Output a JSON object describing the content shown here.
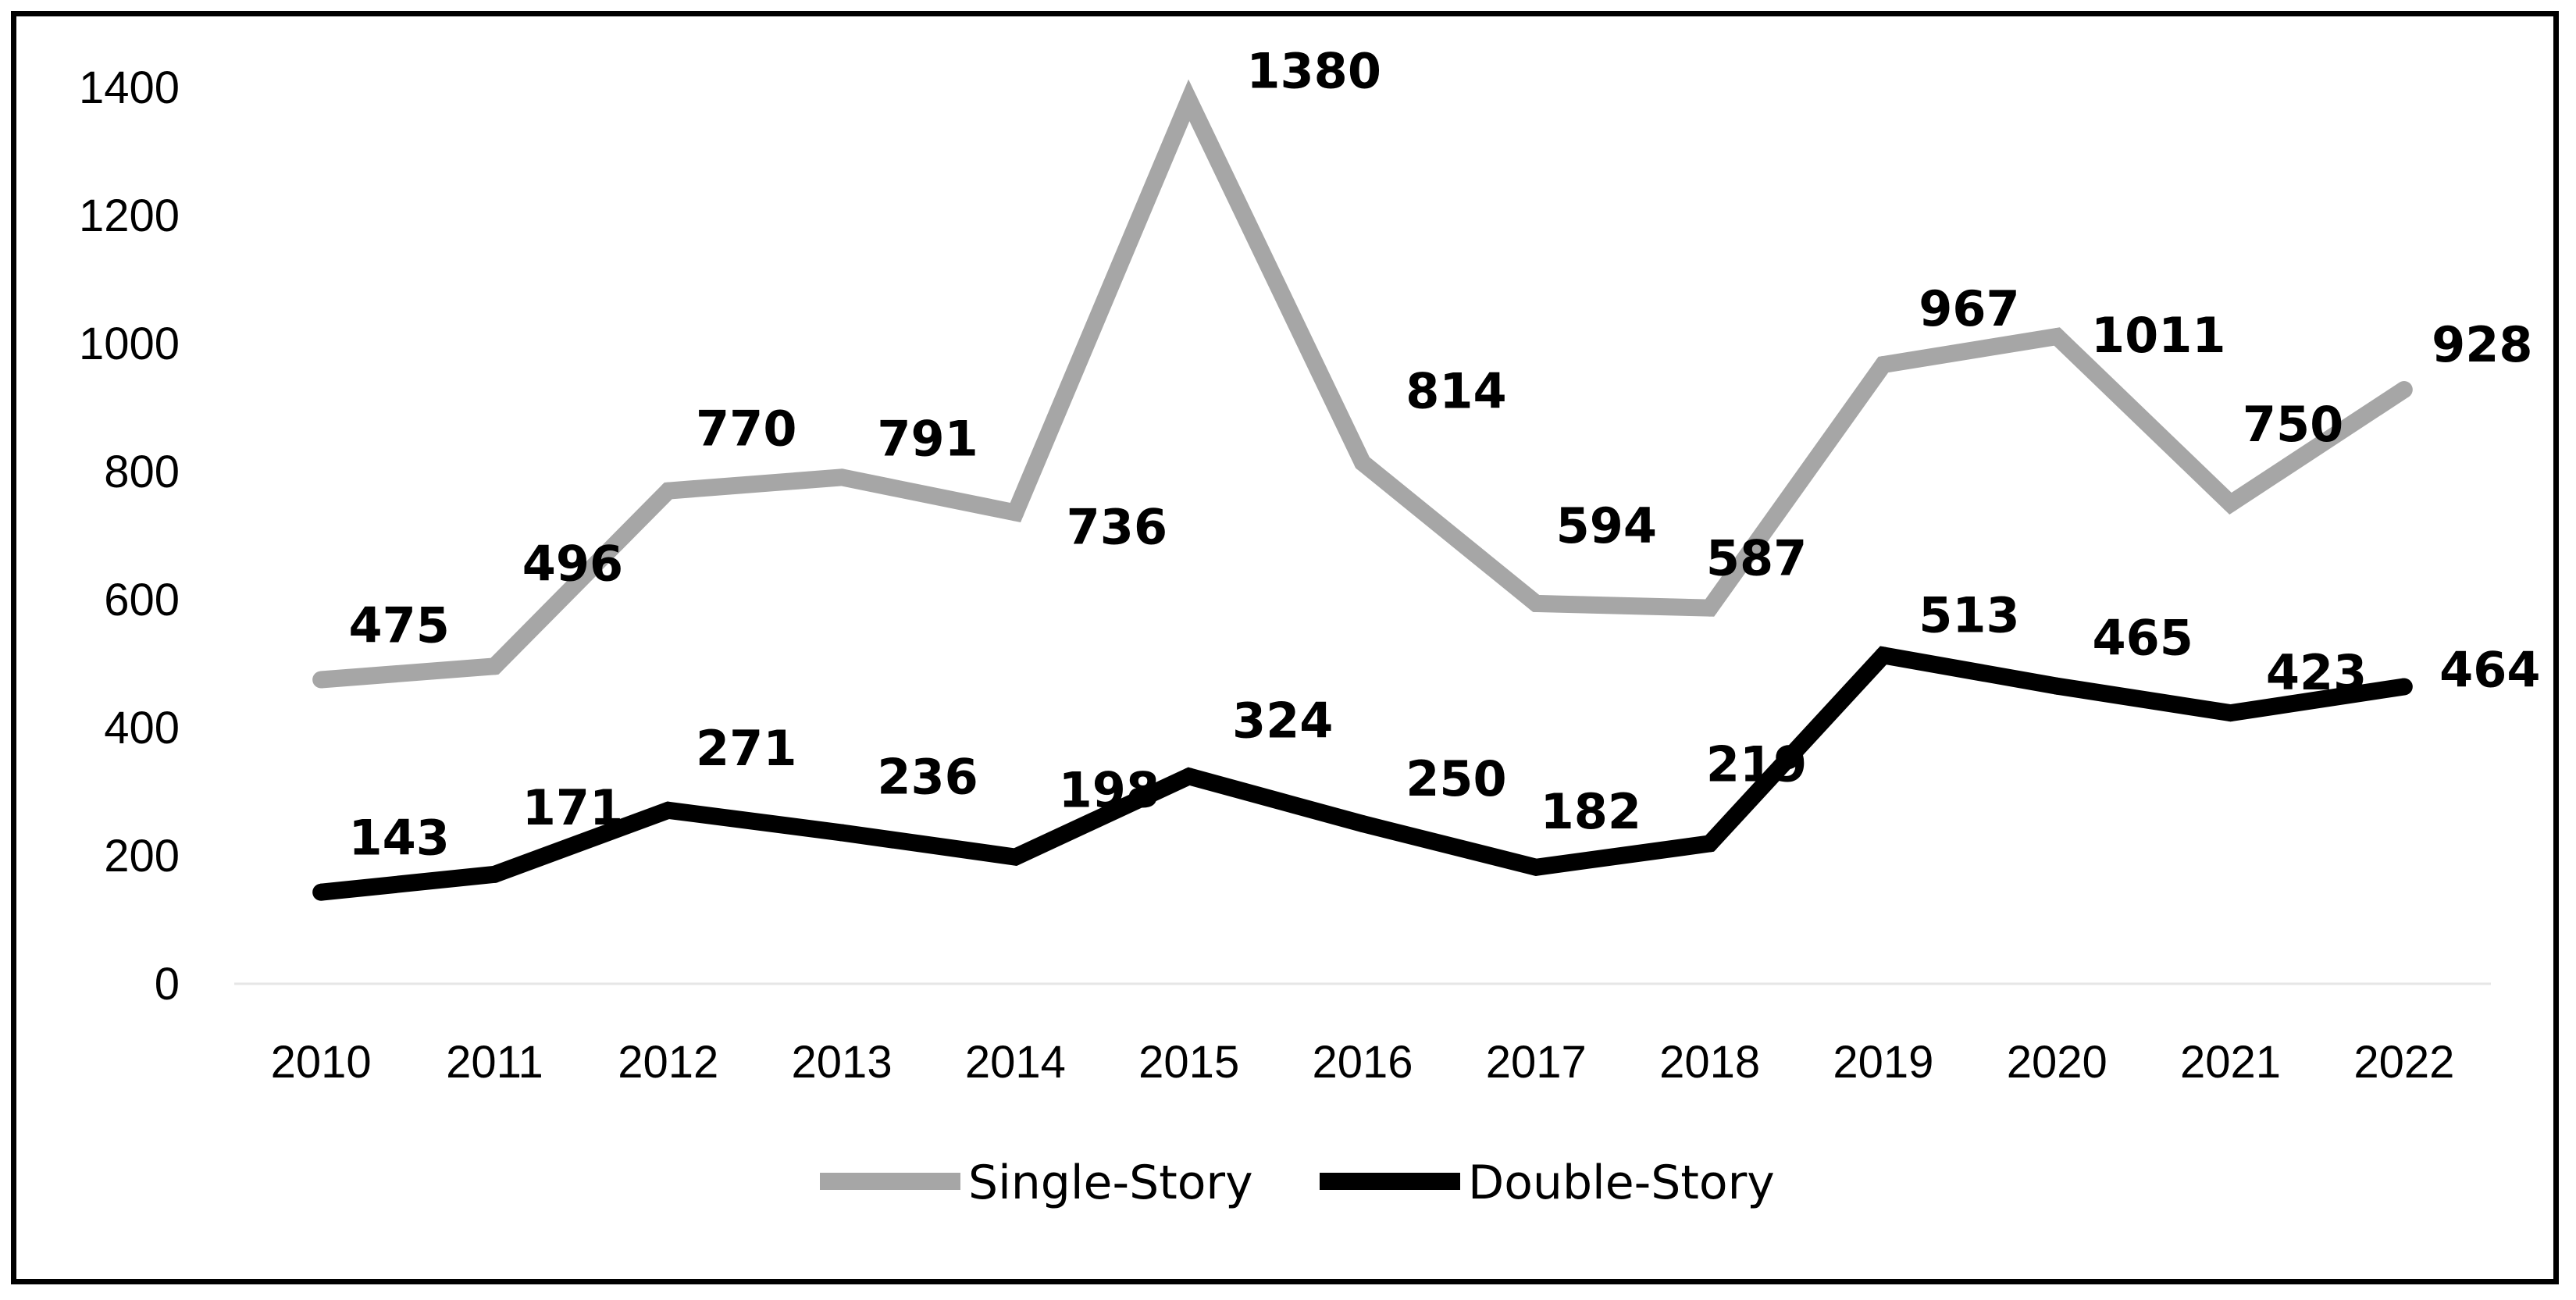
{
  "chart_data": {
    "type": "line",
    "categories": [
      "2010",
      "2011",
      "2012",
      "2013",
      "2014",
      "2015",
      "2016",
      "2017",
      "2018",
      "2019",
      "2020",
      "2021",
      "2022"
    ],
    "y_ticks": [
      "0",
      "200",
      "400",
      "600",
      "800",
      "1000",
      "1200",
      "1400"
    ],
    "ylim": [
      0,
      1400
    ],
    "grid": false,
    "legend_position": "bottom",
    "series": [
      {
        "name": "Single-Story",
        "color": "#a6a6a6",
        "values": [
          475,
          496,
          770,
          791,
          736,
          1380,
          814,
          594,
          587,
          967,
          1011,
          750,
          928
        ],
        "labels": [
          "475",
          "496",
          "770",
          "791",
          "736",
          "1380",
          "814",
          "594",
          "587",
          "967",
          "1011",
          "750",
          "928"
        ]
      },
      {
        "name": "Double-Story",
        "color": "#000000",
        "values": [
          143,
          171,
          271,
          236,
          198,
          324,
          250,
          182,
          219,
          513,
          465,
          423,
          464
        ],
        "labels": [
          "143",
          "171",
          "271",
          "236",
          "198",
          "324",
          "250",
          "182",
          "219",
          "513",
          "465",
          "423",
          "464"
        ]
      }
    ]
  }
}
